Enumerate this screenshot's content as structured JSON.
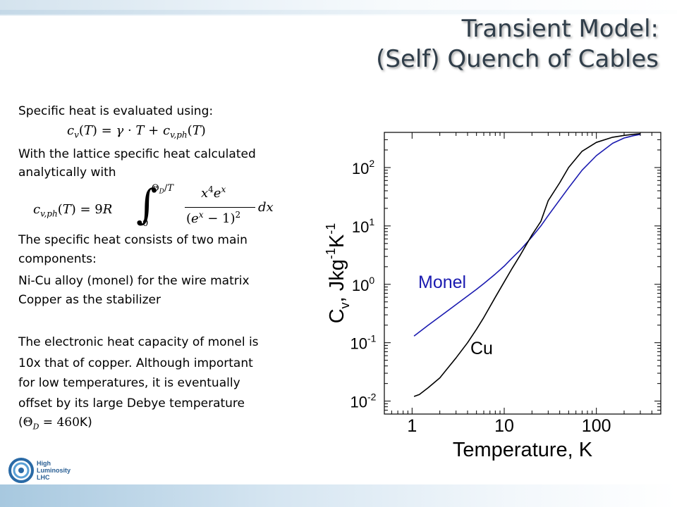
{
  "slide": {
    "title_line1": "Transient Model:",
    "title_line2": "(Self) Quench of Cables",
    "body_lines": {
      "l1": "Specific heat is evaluated using:",
      "l2": "With the lattice specific heat calculated",
      "l3": "analytically with",
      "l4": "The specific heat consists of two main",
      "l5": "components:",
      "l6": "Ni-Cu alloy  (monel) for the wire matrix",
      "l7": "Copper as the stabilizer",
      "l8": "The electronic heat capacity of monel is",
      "l9": "10x that of copper. Although important",
      "l10": "for low temperatures, it is eventually",
      "l11": "offset by its large Debye temperature",
      "l12_open": "(",
      "l12_close": ")"
    },
    "equations": {
      "eq1": "c_v(T) = γ · T + c_v,ph(T)",
      "eq2": "c_v,ph(T) = 9R ∫_0^{Θ_D/T} x^4 e^x / (e^x − 1)^2 dx",
      "eq3": "Θ_D = 460K"
    },
    "logo": {
      "line1": "High",
      "line2": "Luminosity",
      "line3": "LHC"
    }
  },
  "chart_data": {
    "type": "line",
    "xlabel": "Temperature, K",
    "ylabel": "C_v, Jkg^-1K^-1",
    "xscale": "log",
    "yscale": "log",
    "xlim": [
      0.5,
      500
    ],
    "ylim": [
      0.006,
      400
    ],
    "xticks": [
      "1",
      "10",
      "100"
    ],
    "yticks": [
      "10^-2",
      "10^-1",
      "10^0",
      "10^1",
      "10^2"
    ],
    "series": [
      {
        "name": "Monel",
        "color": "#1a1ab0",
        "x": [
          1.05,
          1.5,
          2,
          3,
          4,
          5,
          6,
          8,
          10,
          12,
          15,
          20,
          25,
          30,
          40,
          50,
          70,
          100,
          150,
          200,
          250,
          300
        ],
        "y": [
          0.13,
          0.2,
          0.28,
          0.45,
          0.63,
          0.82,
          1.03,
          1.5,
          2.05,
          2.75,
          3.9,
          6.5,
          10,
          15,
          28,
          45,
          90,
          160,
          260,
          320,
          350,
          370
        ]
      },
      {
        "name": "Cu",
        "color": "#000000",
        "x": [
          1.05,
          1.2,
          1.5,
          2,
          3,
          4,
          5,
          6,
          8,
          10,
          12,
          15,
          20,
          25,
          30,
          40,
          50,
          70,
          100,
          150,
          200,
          250,
          300
        ],
        "y": [
          0.012,
          0.013,
          0.017,
          0.025,
          0.055,
          0.1,
          0.17,
          0.27,
          0.6,
          1.1,
          1.8,
          3.2,
          7,
          12,
          27,
          55,
          100,
          190,
          270,
          330,
          355,
          370,
          380
        ]
      }
    ]
  }
}
